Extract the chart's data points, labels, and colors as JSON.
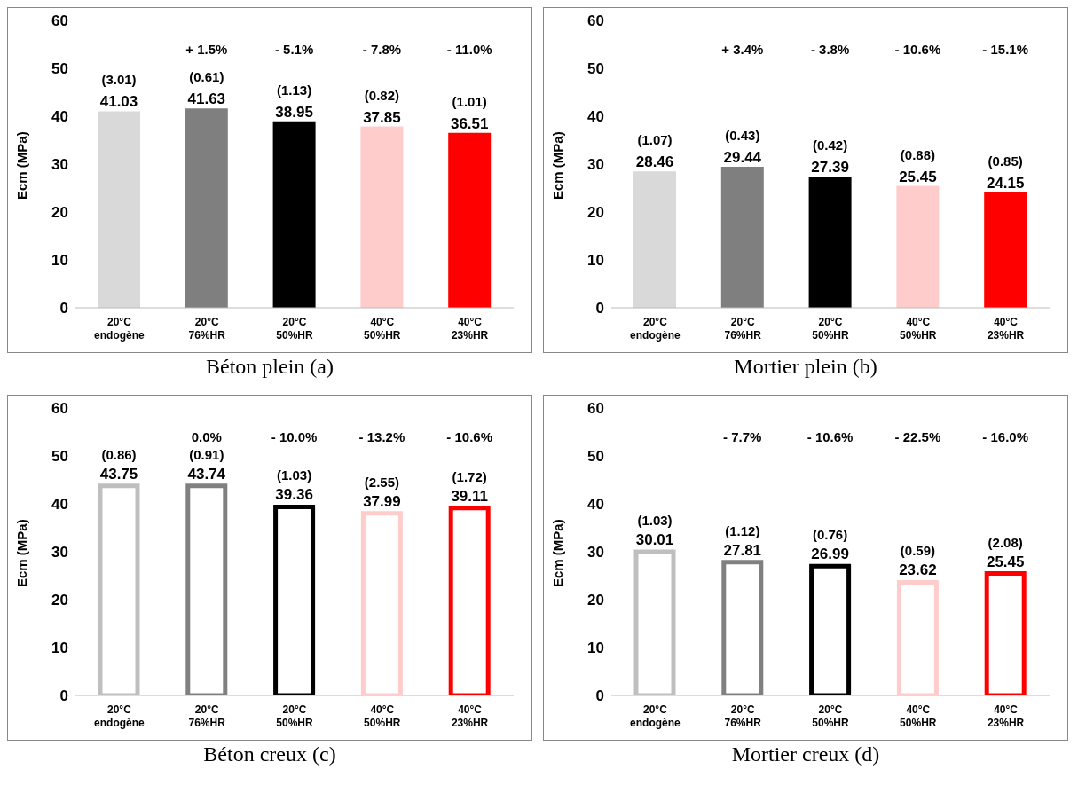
{
  "chart_data": [
    {
      "type": "bar",
      "title": "Béton plein (a)",
      "ylabel": "Ecm (MPa)",
      "categories": [
        "20°C endogène",
        "20°C 76%HR",
        "20°C 50%HR",
        "40°C 50%HR",
        "40°C 23%HR"
      ],
      "values": [
        41.03,
        41.63,
        38.95,
        37.85,
        36.51
      ],
      "colors": [
        "#d9d9d9",
        "#7f7f7f",
        "#000000",
        "#ffcccc",
        "#ff0000"
      ],
      "ylim": [
        0,
        60
      ],
      "yticks": [
        0,
        10,
        20,
        30,
        40,
        50,
        60
      ],
      "data_labels": true,
      "annotations": [
        "(3.01)",
        "(0.61)",
        "(1.13)",
        "(0.82)",
        "(1.01)",
        "+ 1.5%",
        "- 5.1%",
        "- 7.8%",
        "- 11.0%"
      ]
    },
    {
      "type": "bar",
      "title": "Mortier plein (b)",
      "ylabel": "Ecm (MPa)",
      "categories": [
        "20°C endogène",
        "20°C 76%HR",
        "20°C 50%HR",
        "40°C 50%HR",
        "40°C 23%HR"
      ],
      "values": [
        28.46,
        29.44,
        27.39,
        25.45,
        24.15
      ],
      "colors": [
        "#d9d9d9",
        "#7f7f7f",
        "#000000",
        "#ffcccc",
        "#ff0000"
      ],
      "ylim": [
        0,
        60
      ],
      "yticks": [
        0,
        10,
        20,
        30,
        40,
        50,
        60
      ],
      "data_labels": true,
      "annotations": [
        "(1.07)",
        "(0.43)",
        "(0.42)",
        "(0.88)",
        "(0.85)",
        "+ 3.4%",
        "- 3.8%",
        "- 10.6%",
        "- 15.1%"
      ]
    },
    {
      "type": "bar",
      "title": "Béton creux (c)",
      "ylabel": "Ecm (MPa)",
      "categories": [
        "20°C endogène",
        "20°C 76%HR",
        "20°C 50%HR",
        "40°C 50%HR",
        "40°C 23%HR"
      ],
      "values": [
        43.75,
        43.74,
        39.36,
        37.99,
        39.11
      ],
      "colors": [
        "#bfbfbf",
        "#808080",
        "#000000",
        "#ffcccc",
        "#ff0000"
      ],
      "ylim": [
        0,
        60
      ],
      "yticks": [
        0,
        10,
        20,
        30,
        40,
        50,
        60
      ],
      "data_labels": true,
      "annotations": [
        "(0.86)",
        "(0.91)",
        "(1.03)",
        "(2.55)",
        "(1.72)",
        "0.0%",
        "- 10.0%",
        "- 13.2%",
        "- 10.6%"
      ]
    },
    {
      "type": "bar",
      "title": "Mortier creux (d)",
      "ylabel": "Ecm (MPa)",
      "categories": [
        "20°C endogène",
        "20°C 76%HR",
        "20°C 50%HR",
        "40°C 50%HR",
        "40°C 23%HR"
      ],
      "values": [
        30.01,
        27.81,
        26.99,
        23.62,
        25.45
      ],
      "colors": [
        "#bfbfbf",
        "#808080",
        "#000000",
        "#ffcccc",
        "#ff0000"
      ],
      "ylim": [
        0,
        60
      ],
      "yticks": [
        0,
        10,
        20,
        30,
        40,
        50,
        60
      ],
      "data_labels": true,
      "annotations": [
        "(1.03)",
        "(1.12)",
        "(0.76)",
        "(0.59)",
        "(2.08)",
        "- 7.7%",
        "- 10.6%",
        "- 22.5%",
        "- 16.0%"
      ]
    }
  ]
}
